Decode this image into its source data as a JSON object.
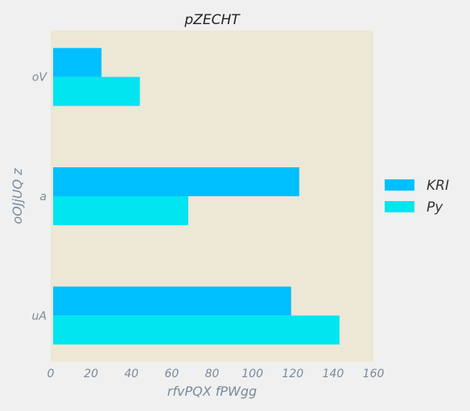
{
  "chart_data": {
    "type": "bar",
    "orientation": "horizontal",
    "title": "pZECHT",
    "xlabel": "rfvPQX fPWgg",
    "ylabel": "oOJjUQ z",
    "categories": [
      "oV",
      "a",
      "uA"
    ],
    "series": [
      {
        "name": "KRI",
        "values": [
          24,
          122,
          118
        ],
        "color": "#00bfff"
      },
      {
        "name": "Py",
        "values": [
          43,
          67,
          142
        ],
        "color": "#00e5f0"
      }
    ],
    "xlim": [
      0,
      160
    ],
    "xticks": [
      "0",
      "20",
      "40",
      "60",
      "80",
      "100",
      "120",
      "140",
      "160"
    ],
    "grid": false,
    "legend_position": "right",
    "plot_background": "#ede7d6",
    "page_background": "#f0f0f0"
  }
}
